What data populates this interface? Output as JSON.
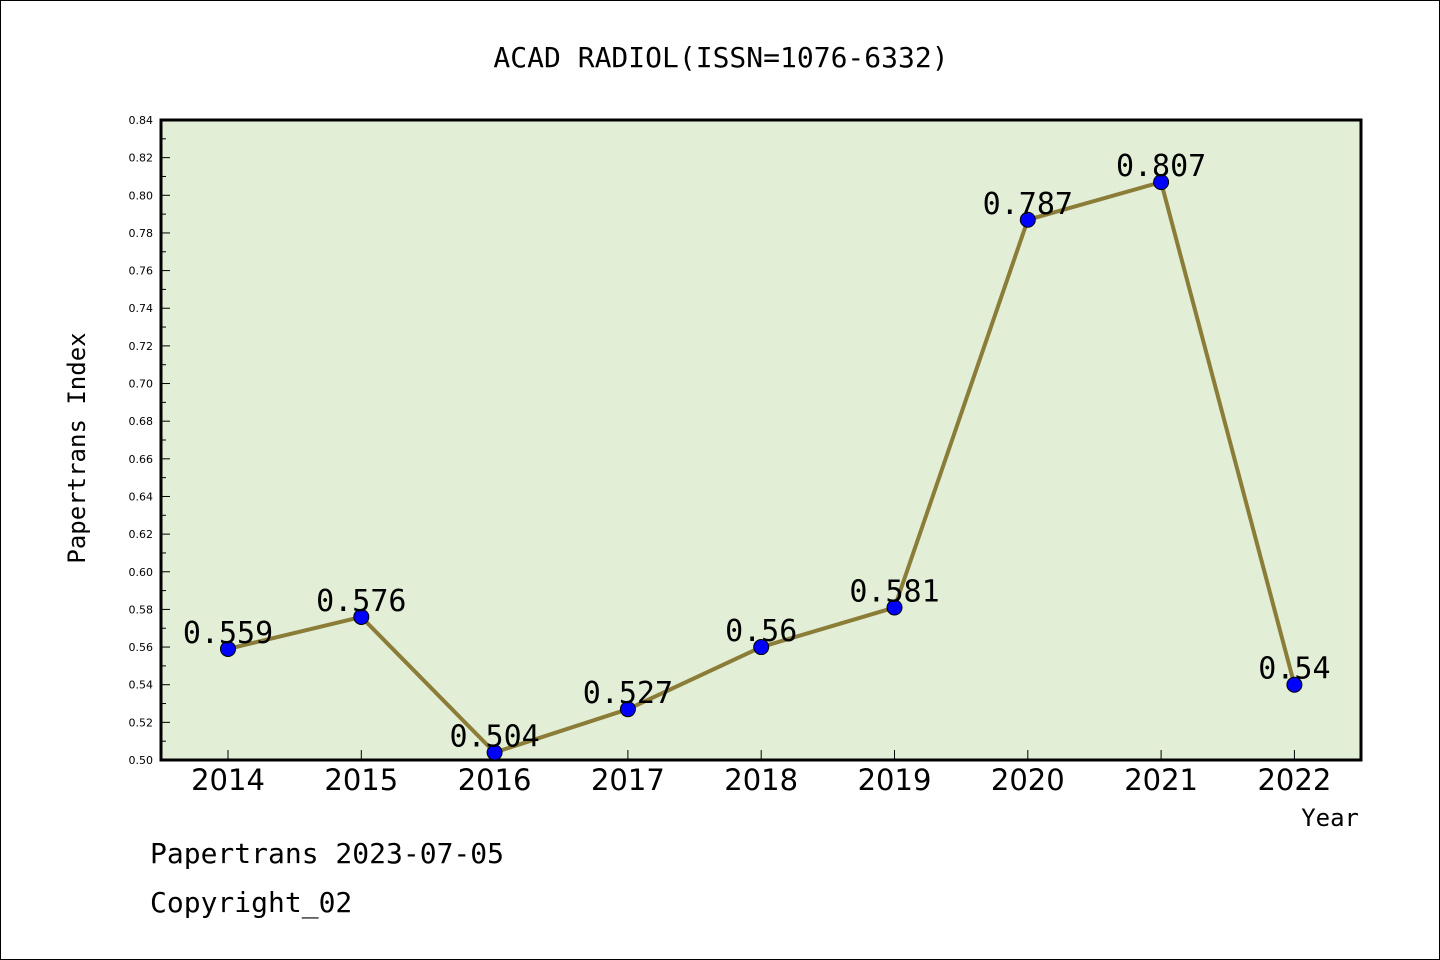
{
  "chart_data": {
    "type": "line",
    "title": "ACAD RADIOL(ISSN=1076-6332)",
    "xlabel": "Year",
    "ylabel": "Papertrans Index",
    "categories": [
      "2014",
      "2015",
      "2016",
      "2017",
      "2018",
      "2019",
      "2020",
      "2021",
      "2022"
    ],
    "series": [
      {
        "values": [
          0.559,
          0.576,
          0.504,
          0.527,
          0.56,
          0.581,
          0.787,
          0.807,
          0.54
        ],
        "labels": [
          "0.559",
          "0.576",
          "0.504",
          "0.527",
          "0.56",
          "0.581",
          "0.787",
          "0.807",
          "0.54"
        ]
      }
    ],
    "ylim": [
      0.5,
      0.84
    ],
    "yticks": [
      "0.50",
      "0.52",
      "0.54",
      "0.56",
      "0.58",
      "0.60",
      "0.62",
      "0.64",
      "0.66",
      "0.68",
      "0.70",
      "0.72",
      "0.74",
      "0.76",
      "0.78",
      "0.80",
      "0.82",
      "0.84"
    ],
    "grid": false,
    "legend": "none",
    "colors": {
      "plot_background": "#e2efd6",
      "line": "#8b7d38",
      "marker": "#0000ff"
    }
  },
  "footer": {
    "date_line": "Papertrans 2023-07-05",
    "copyright_line": "Copyright_02"
  }
}
